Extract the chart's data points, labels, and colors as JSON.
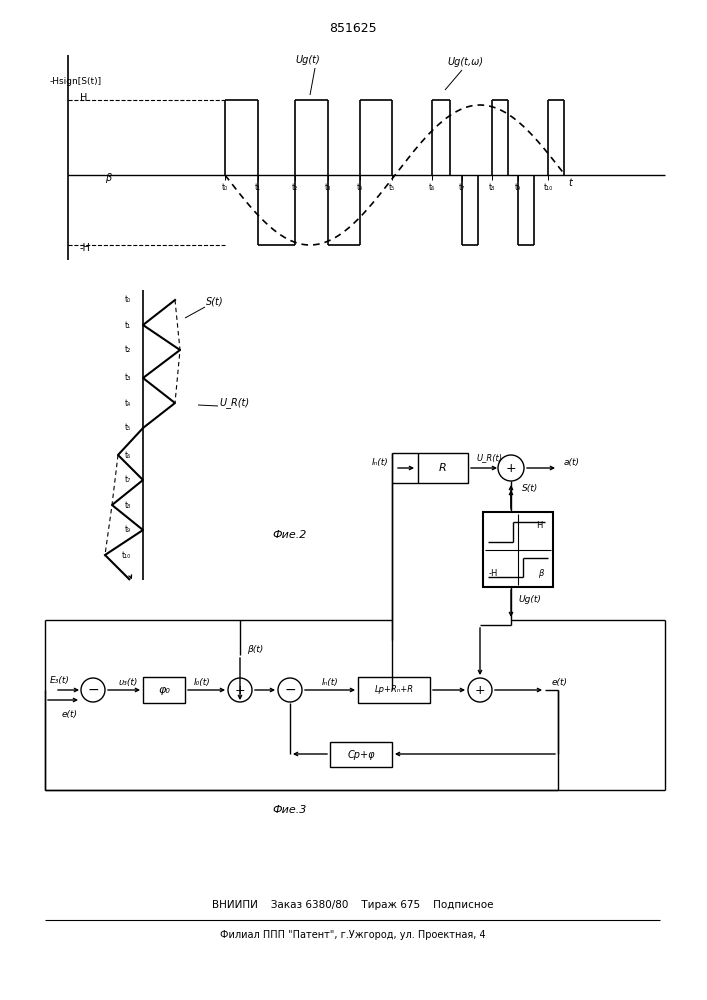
{
  "title": "851625",
  "background": "#ffffff",
  "bottom_line1": "ВНИИПИ    Заказ 6380/80    Тираж 675    Подписное",
  "bottom_line2": "Филиал ППП \"Патент\", г.Ужгород, ул. Проектная, 4"
}
